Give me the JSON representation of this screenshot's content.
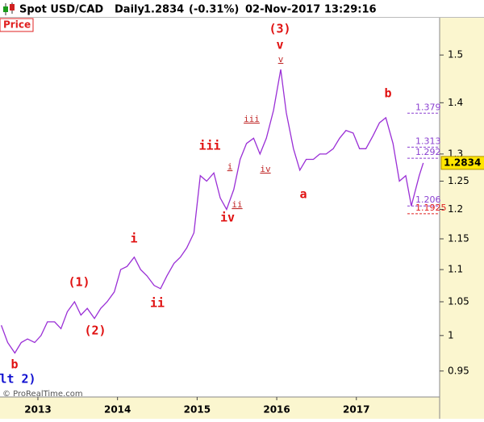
{
  "header": {
    "instrument": "Spot USD/CAD",
    "period": "Daily",
    "last_price": 1.2834,
    "change_label": "(-0.31%)",
    "timestamp": "02-Nov-2017 13:29:16"
  },
  "chart_data": {
    "type": "line",
    "panel_label": "Price",
    "copyright": "© ProRealTime.com",
    "color": "#9a2fd6",
    "log_scale": true,
    "x": [
      2012.54,
      2012.62,
      2012.71,
      2012.79,
      2012.87,
      2012.96,
      2013.04,
      2013.12,
      2013.21,
      2013.29,
      2013.37,
      2013.46,
      2013.54,
      2013.62,
      2013.71,
      2013.79,
      2013.87,
      2013.96,
      2014.04,
      2014.12,
      2014.21,
      2014.29,
      2014.37,
      2014.46,
      2014.54,
      2014.62,
      2014.71,
      2014.79,
      2014.87,
      2014.96,
      2015.04,
      2015.12,
      2015.21,
      2015.29,
      2015.37,
      2015.46,
      2015.54,
      2015.62,
      2015.71,
      2015.79,
      2015.87,
      2015.96,
      2016.05,
      2016.12,
      2016.21,
      2016.29,
      2016.37,
      2016.46,
      2016.54,
      2016.62,
      2016.71,
      2016.79,
      2016.87,
      2016.96,
      2017.04,
      2017.12,
      2017.21,
      2017.29,
      2017.37,
      2017.46,
      2017.54,
      2017.62,
      2017.69,
      2017.79,
      2017.84
    ],
    "values": [
      1.015,
      0.99,
      0.975,
      0.99,
      0.995,
      0.99,
      1.0,
      1.02,
      1.02,
      1.01,
      1.035,
      1.05,
      1.03,
      1.04,
      1.025,
      1.04,
      1.05,
      1.065,
      1.1,
      1.105,
      1.12,
      1.1,
      1.09,
      1.075,
      1.07,
      1.09,
      1.11,
      1.12,
      1.135,
      1.16,
      1.26,
      1.25,
      1.265,
      1.22,
      1.2,
      1.235,
      1.29,
      1.32,
      1.33,
      1.3,
      1.33,
      1.385,
      1.469,
      1.38,
      1.31,
      1.27,
      1.29,
      1.29,
      1.3,
      1.3,
      1.31,
      1.33,
      1.345,
      1.34,
      1.31,
      1.31,
      1.335,
      1.36,
      1.37,
      1.32,
      1.25,
      1.26,
      1.206,
      1.26,
      1.2834
    ],
    "xlim": [
      2012.524,
      2018.046
    ],
    "xticks": [
      2013,
      2014,
      2015,
      2016,
      2017
    ],
    "ylim": [
      0.915,
      1.583
    ],
    "yticks": [
      0.95,
      1,
      1.05,
      1.1,
      1.15,
      1.2,
      1.25,
      1.3,
      1.4,
      1.5
    ],
    "levels": [
      {
        "value": 1.379,
        "color": "#8a3fd0"
      },
      {
        "value": 1.313,
        "color": "#8a3fd0"
      },
      {
        "value": 1.292,
        "color": "#8a3fd0"
      },
      {
        "value": 1.206,
        "color": "#8a3fd0"
      },
      {
        "value": 1.1925,
        "color": "#e02020"
      }
    ],
    "annotations": [
      "(3)",
      "v",
      "v",
      "iii",
      "i",
      "ii",
      "iv",
      "iii",
      "iv",
      "i",
      "ii",
      "(1)",
      "(2)",
      "b",
      "lt 2)",
      "a",
      "b"
    ]
  }
}
